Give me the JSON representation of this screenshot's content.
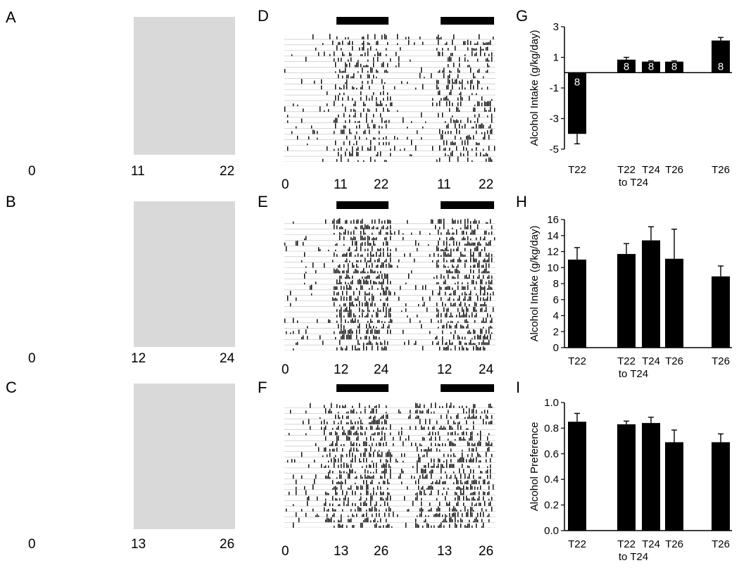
{
  "panels": [
    {
      "letter": "A",
      "ticks": [
        "0",
        "11",
        "22"
      ]
    },
    {
      "letter": "B",
      "ticks": [
        "0",
        "12",
        "24"
      ]
    },
    {
      "letter": "C",
      "ticks": [
        "0",
        "13",
        "26"
      ]
    }
  ],
  "actograms": [
    {
      "letter": "D",
      "period": "T22",
      "ticks": [
        "0",
        "11",
        "22",
        "11",
        "22"
      ]
    },
    {
      "letter": "E",
      "period": "T24",
      "ticks": [
        "0",
        "12",
        "24",
        "12",
        "24"
      ]
    },
    {
      "letter": "F",
      "period": "T26",
      "ticks": [
        "0",
        "13",
        "26",
        "13",
        "26"
      ]
    }
  ],
  "chart_data": [
    {
      "letter": "G",
      "type": "bar",
      "ylabel": "Alcohol Intake (g/kg/day)",
      "ylim": [
        -5,
        3
      ],
      "yticks": [
        3,
        1,
        -1,
        -3,
        -5
      ],
      "categories": [
        "T22",
        "T22",
        "T24",
        "T26",
        "T26"
      ],
      "group_label": "to T24",
      "values": [
        -4.0,
        0.85,
        0.72,
        0.72,
        2.1
      ],
      "errors": [
        0.65,
        0.15,
        0.05,
        0.05,
        0.2
      ],
      "n_labels": [
        "8",
        "8",
        "8",
        "8",
        "8"
      ]
    },
    {
      "letter": "H",
      "type": "bar",
      "ylabel": "Alcohol Intake (g/kg/day)",
      "ylim": [
        0,
        16
      ],
      "yticks": [
        16,
        14,
        12,
        10,
        8,
        6,
        4,
        2,
        0
      ],
      "categories": [
        "T22",
        "T22",
        "T24",
        "T26",
        "T26"
      ],
      "group_label": "to T24",
      "values": [
        11.0,
        11.7,
        13.4,
        11.1,
        8.9
      ],
      "errors": [
        1.5,
        1.3,
        1.7,
        3.7,
        1.3
      ],
      "n_labels": []
    },
    {
      "letter": "I",
      "type": "bar",
      "ylabel": "Alcohol Preference",
      "ylim": [
        0,
        1
      ],
      "yticks": [
        "1.0",
        "0.8",
        "0.6",
        "0.4",
        "0.2",
        "0.0"
      ],
      "categories": [
        "T22",
        "T22",
        "T24",
        "T26",
        "T26"
      ],
      "group_label": "to T24",
      "values": [
        0.85,
        0.83,
        0.84,
        0.69,
        0.69
      ],
      "errors": [
        0.065,
        0.025,
        0.045,
        0.095,
        0.065
      ],
      "n_labels": []
    }
  ]
}
